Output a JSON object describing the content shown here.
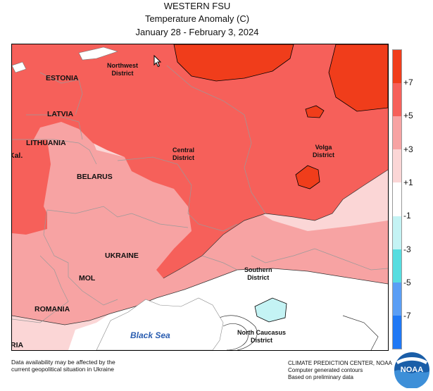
{
  "title": {
    "line1": "WESTERN FSU",
    "line2": "Temperature Anomaly (C)",
    "line3": "January 28 - February 3, 2024"
  },
  "map": {
    "country_labels": [
      "ESTONIA",
      "LATVIA",
      "LITHUANIA",
      "Kal.",
      "BELARUS",
      "UKRAINE",
      "MOL",
      "ROMANIA",
      "RIA"
    ],
    "district_labels": {
      "northwest": [
        "Northwest",
        "District"
      ],
      "central": [
        "Central",
        "District"
      ],
      "volga": [
        "Volga",
        "District"
      ],
      "southern": [
        "Southern",
        "District"
      ],
      "north_caucasus": [
        "North Caucasus",
        "District"
      ]
    },
    "sea_label": "Black Sea"
  },
  "legend": {
    "ticks": [
      "+7",
      "+5",
      "+3",
      "+1",
      "-1",
      "-3",
      "-5",
      "-7"
    ],
    "colors": [
      "#f03d1b",
      "#f6605a",
      "#f7a3a3",
      "#fbd6d6",
      "#ffffff",
      "#c4f3f4",
      "#57dde0",
      "#5a9ef5",
      "#1f78f5"
    ]
  },
  "footer": {
    "note_line1": "Data availability may be affected by the",
    "note_line2": "current geopolitical situation in Ukraine",
    "credit_line1": "CLIMATE PREDICTION CENTER, NOAA",
    "credit_line2": "Computer generated contours",
    "credit_line3": "Based on preliminary data",
    "logo_text": "NOAA"
  }
}
